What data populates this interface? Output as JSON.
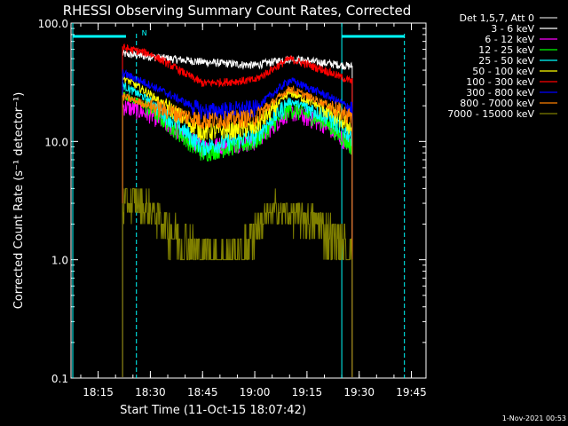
{
  "chart_data": {
    "type": "line",
    "title": "RHESSI Observing Summary Count Rates, Corrected",
    "xlabel": "Start Time (11-Oct-15 18:07:42)",
    "ylabel": "Corrected Count Rate (s⁻¹ detector⁻¹)",
    "y_scale": "log",
    "ylim": [
      0.1,
      100.0
    ],
    "y_ticks": [
      "100.0",
      "10.0",
      "1.0",
      "0.1"
    ],
    "x_ticks": [
      "18:15",
      "18:30",
      "18:45",
      "19:00",
      "19:15",
      "19:30",
      "19:45"
    ],
    "x_range_minutes": [
      18.12,
      19.82
    ],
    "legend_header": "Det 1,5,7, Att 0",
    "legend_position": "top-right",
    "footer": "1-Nov-2021 00:53",
    "night_marker": "N",
    "series": [
      {
        "name": "3 - 6 keV",
        "color": "#ffffff",
        "x": [
          "18:22",
          "18:30",
          "18:45",
          "19:00",
          "19:10",
          "19:20",
          "19:28"
        ],
        "values": [
          55,
          52,
          47,
          44,
          50,
          46,
          43
        ]
      },
      {
        "name": "6 - 12 keV",
        "color": "#ff00ff",
        "x": [
          "18:22",
          "18:30",
          "18:45",
          "19:00",
          "19:10",
          "19:20",
          "19:28"
        ],
        "values": [
          20,
          17,
          9,
          10,
          18,
          14,
          9
        ]
      },
      {
        "name": "12 - 25 keV",
        "color": "#00ff00",
        "x": [
          "18:22",
          "18:30",
          "18:45",
          "19:00",
          "19:10",
          "19:20",
          "19:28"
        ],
        "values": [
          25,
          19,
          8,
          10,
          19,
          15,
          9
        ]
      },
      {
        "name": "25 - 50 keV",
        "color": "#00ffff",
        "x": [
          "18:22",
          "18:30",
          "18:45",
          "19:00",
          "19:10",
          "19:20",
          "19:28"
        ],
        "values": [
          30,
          22,
          9,
          11,
          22,
          17,
          11
        ]
      },
      {
        "name": "50 - 100 keV",
        "color": "#ffff00",
        "x": [
          "18:22",
          "18:30",
          "18:45",
          "19:00",
          "19:10",
          "19:20",
          "19:28"
        ],
        "values": [
          35,
          25,
          12,
          13,
          26,
          19,
          13
        ]
      },
      {
        "name": "100 - 300 keV",
        "color": "#ff0000",
        "x": [
          "18:22",
          "18:30",
          "18:45",
          "19:00",
          "19:10",
          "19:20",
          "19:28"
        ],
        "values": [
          62,
          55,
          31,
          33,
          50,
          40,
          32
        ]
      },
      {
        "name": "300 - 800 keV",
        "color": "#0000ff",
        "x": [
          "18:22",
          "18:30",
          "18:45",
          "19:00",
          "19:10",
          "19:20",
          "19:28"
        ],
        "values": [
          38,
          30,
          18,
          19,
          33,
          25,
          19
        ]
      },
      {
        "name": "800 - 7000 keV",
        "color": "#ff8000",
        "x": [
          "18:22",
          "18:30",
          "18:45",
          "19:00",
          "19:10",
          "19:20",
          "19:28"
        ],
        "values": [
          24,
          20,
          15,
          16,
          28,
          21,
          16
        ]
      },
      {
        "name": "7000 - 15000 keV",
        "color": "#808000",
        "x": [
          "18:22",
          "18:24",
          "18:30",
          "18:36",
          "18:45",
          "18:56",
          "19:00",
          "19:06",
          "19:12",
          "19:18",
          "19:28"
        ],
        "values": [
          2.5,
          3.0,
          2.5,
          1.5,
          1.0,
          1.0,
          1.6,
          2.5,
          2.2,
          1.8,
          1.0
        ]
      }
    ],
    "legend_colors": [
      "#ffffff",
      "#ff00ff",
      "#00ff00",
      "#00ffff",
      "#ffff00",
      "#ff0000",
      "#0000ff",
      "#ff8000",
      "#808000"
    ]
  }
}
